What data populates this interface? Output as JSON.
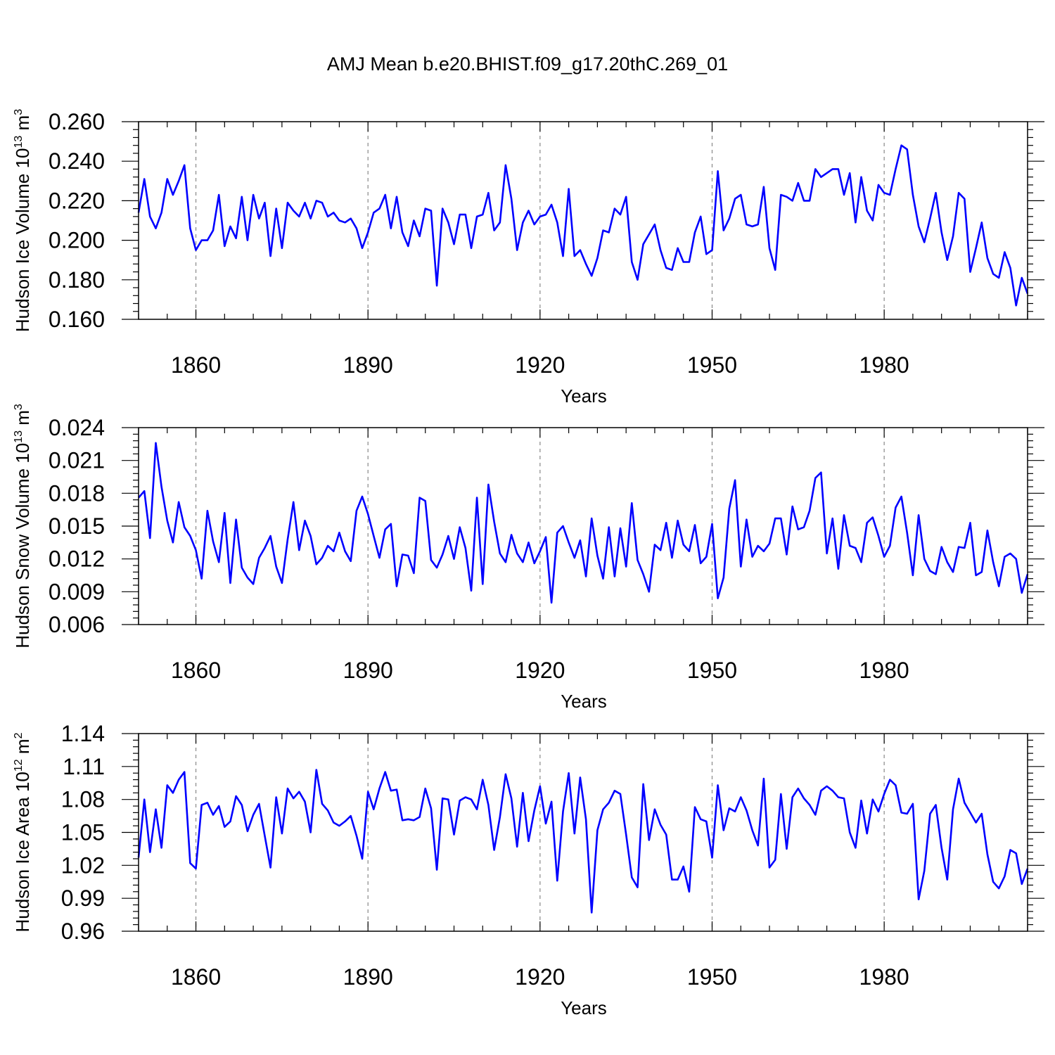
{
  "figure": {
    "title": "AMJ Mean b.e20.BHIST.f09_g17.20thC.269_01",
    "line_color": "#0000ff"
  },
  "chart_data": [
    {
      "type": "line",
      "name": "hudson-ice-volume",
      "ylabel": "Hudson Ice Volume 10",
      "ylabel_exp": "13",
      "ylabel_unit": "m",
      "ylabel_unit_exp": "3",
      "xlabel": "Years",
      "xlim": [
        1850,
        2005
      ],
      "ylim": [
        0.16,
        0.26
      ],
      "yticks": [
        0.16,
        0.18,
        0.2,
        0.22,
        0.24,
        0.26
      ],
      "ytick_labels": [
        "0.160",
        "0.180",
        "0.200",
        "0.220",
        "0.240",
        "0.260"
      ],
      "xticks": [
        1860,
        1890,
        1920,
        1950,
        1980
      ],
      "xtick_labels": [
        "1860",
        "1890",
        "1920",
        "1950",
        "1980"
      ],
      "x_start": 1850,
      "values": [
        0.214,
        0.231,
        0.212,
        0.206,
        0.214,
        0.231,
        0.223,
        0.23,
        0.238,
        0.206,
        0.195,
        0.2,
        0.2,
        0.205,
        0.223,
        0.197,
        0.207,
        0.201,
        0.222,
        0.2,
        0.223,
        0.211,
        0.219,
        0.192,
        0.216,
        0.196,
        0.219,
        0.215,
        0.212,
        0.219,
        0.211,
        0.22,
        0.219,
        0.212,
        0.214,
        0.21,
        0.209,
        0.211,
        0.206,
        0.196,
        0.204,
        0.214,
        0.216,
        0.223,
        0.206,
        0.222,
        0.204,
        0.197,
        0.21,
        0.202,
        0.216,
        0.215,
        0.177,
        0.216,
        0.209,
        0.198,
        0.213,
        0.213,
        0.196,
        0.212,
        0.213,
        0.224,
        0.205,
        0.209,
        0.238,
        0.221,
        0.195,
        0.209,
        0.215,
        0.208,
        0.212,
        0.213,
        0.218,
        0.209,
        0.192,
        0.226,
        0.192,
        0.195,
        0.188,
        0.182,
        0.191,
        0.205,
        0.204,
        0.216,
        0.213,
        0.222,
        0.189,
        0.18,
        0.198,
        0.203,
        0.208,
        0.195,
        0.186,
        0.185,
        0.196,
        0.189,
        0.189,
        0.204,
        0.212,
        0.193,
        0.195,
        0.235,
        0.205,
        0.211,
        0.221,
        0.223,
        0.208,
        0.207,
        0.208,
        0.227,
        0.196,
        0.185,
        0.223,
        0.222,
        0.22,
        0.229,
        0.22,
        0.22,
        0.236,
        0.232,
        0.234,
        0.236,
        0.236,
        0.223,
        0.234,
        0.209,
        0.232,
        0.215,
        0.21,
        0.228,
        0.224,
        0.223,
        0.236,
        0.248,
        0.246,
        0.223,
        0.207,
        0.199,
        0.211,
        0.224,
        0.204,
        0.19,
        0.202,
        0.224,
        0.221,
        0.184,
        0.196,
        0.209,
        0.191,
        0.183,
        0.181,
        0.194,
        0.186,
        0.167,
        0.181,
        0.173
      ]
    },
    {
      "type": "line",
      "name": "hudson-snow-volume",
      "ylabel": "Hudson Snow Volume 10",
      "ylabel_exp": "13",
      "ylabel_unit": "m",
      "ylabel_unit_exp": "3",
      "xlabel": "Years",
      "xlim": [
        1850,
        2005
      ],
      "ylim": [
        0.006,
        0.024
      ],
      "yticks": [
        0.006,
        0.009,
        0.012,
        0.015,
        0.018,
        0.021,
        0.024
      ],
      "ytick_labels": [
        "0.006",
        "0.009",
        "0.012",
        "0.015",
        "0.018",
        "0.021",
        "0.024"
      ],
      "xticks": [
        1860,
        1890,
        1920,
        1950,
        1980
      ],
      "xtick_labels": [
        "1860",
        "1890",
        "1920",
        "1950",
        "1980"
      ],
      "x_start": 1850,
      "values": [
        0.0176,
        0.0182,
        0.0139,
        0.0226,
        0.0186,
        0.0155,
        0.0135,
        0.0172,
        0.0149,
        0.0141,
        0.0128,
        0.0102,
        0.0164,
        0.0136,
        0.0117,
        0.0162,
        0.0098,
        0.0156,
        0.0112,
        0.0103,
        0.0097,
        0.0121,
        0.013,
        0.0141,
        0.0113,
        0.0098,
        0.0138,
        0.0172,
        0.0128,
        0.0155,
        0.0141,
        0.0115,
        0.0121,
        0.0132,
        0.0127,
        0.0144,
        0.0127,
        0.0118,
        0.0164,
        0.0177,
        0.0161,
        0.0141,
        0.0121,
        0.0147,
        0.0152,
        0.0095,
        0.0124,
        0.0123,
        0.0107,
        0.0176,
        0.0173,
        0.0119,
        0.0112,
        0.0124,
        0.0141,
        0.012,
        0.0149,
        0.013,
        0.0091,
        0.0176,
        0.0097,
        0.0188,
        0.0154,
        0.0125,
        0.0117,
        0.0142,
        0.0125,
        0.0117,
        0.0135,
        0.0116,
        0.0127,
        0.014,
        0.008,
        0.0144,
        0.015,
        0.0135,
        0.0121,
        0.0137,
        0.0104,
        0.0157,
        0.0123,
        0.0102,
        0.0149,
        0.0104,
        0.0148,
        0.0113,
        0.0171,
        0.0119,
        0.0106,
        0.009,
        0.0133,
        0.0128,
        0.0153,
        0.0121,
        0.0155,
        0.0133,
        0.0127,
        0.0151,
        0.0116,
        0.0122,
        0.0152,
        0.0084,
        0.0103,
        0.0166,
        0.0192,
        0.0113,
        0.0156,
        0.0122,
        0.0132,
        0.0127,
        0.0134,
        0.0157,
        0.0157,
        0.0124,
        0.0168,
        0.0147,
        0.0149,
        0.0164,
        0.0194,
        0.0199,
        0.0125,
        0.0157,
        0.0111,
        0.016,
        0.0132,
        0.013,
        0.0117,
        0.0153,
        0.0158,
        0.0141,
        0.0122,
        0.0132,
        0.0167,
        0.0177,
        0.0144,
        0.0105,
        0.016,
        0.012,
        0.0109,
        0.0106,
        0.0131,
        0.0117,
        0.0108,
        0.0131,
        0.013,
        0.0153,
        0.0105,
        0.0108,
        0.0146,
        0.0117,
        0.0095,
        0.0122,
        0.0125,
        0.012,
        0.0089,
        0.0106
      ]
    },
    {
      "type": "line",
      "name": "hudson-ice-area",
      "ylabel": "Hudson Ice Area 10",
      "ylabel_exp": "12",
      "ylabel_unit": "m",
      "ylabel_unit_exp": "2",
      "xlabel": "Years",
      "xlim": [
        1850,
        2005
      ],
      "ylim": [
        0.96,
        1.14
      ],
      "yticks": [
        0.96,
        0.99,
        1.02,
        1.05,
        1.08,
        1.11,
        1.14
      ],
      "ytick_labels": [
        "0.96",
        "0.99",
        "1.02",
        "1.05",
        "1.08",
        "1.11",
        "1.14"
      ],
      "xticks": [
        1860,
        1890,
        1920,
        1950,
        1980
      ],
      "xtick_labels": [
        "1860",
        "1890",
        "1920",
        "1950",
        "1980"
      ],
      "x_start": 1850,
      "values": [
        1.027,
        1.08,
        1.032,
        1.071,
        1.036,
        1.093,
        1.086,
        1.098,
        1.105,
        1.022,
        1.017,
        1.075,
        1.077,
        1.066,
        1.074,
        1.055,
        1.06,
        1.083,
        1.075,
        1.051,
        1.066,
        1.076,
        1.047,
        1.018,
        1.082,
        1.049,
        1.09,
        1.081,
        1.087,
        1.078,
        1.05,
        1.107,
        1.076,
        1.07,
        1.059,
        1.056,
        1.06,
        1.065,
        1.047,
        1.026,
        1.087,
        1.071,
        1.09,
        1.105,
        1.088,
        1.089,
        1.061,
        1.062,
        1.061,
        1.064,
        1.09,
        1.072,
        1.016,
        1.081,
        1.08,
        1.048,
        1.079,
        1.082,
        1.08,
        1.071,
        1.098,
        1.075,
        1.034,
        1.064,
        1.103,
        1.081,
        1.037,
        1.086,
        1.042,
        1.07,
        1.092,
        1.058,
        1.078,
        1.006,
        1.069,
        1.104,
        1.049,
        1.1,
        1.062,
        0.977,
        1.052,
        1.071,
        1.077,
        1.088,
        1.085,
        1.048,
        1.009,
        1.0,
        1.094,
        1.043,
        1.071,
        1.057,
        1.048,
        1.007,
        1.007,
        1.019,
        0.996,
        1.073,
        1.062,
        1.06,
        1.027,
        1.093,
        1.052,
        1.072,
        1.069,
        1.082,
        1.07,
        1.052,
        1.038,
        1.099,
        1.018,
        1.025,
        1.085,
        1.035,
        1.082,
        1.09,
        1.081,
        1.075,
        1.066,
        1.088,
        1.092,
        1.088,
        1.082,
        1.081,
        1.05,
        1.036,
        1.079,
        1.049,
        1.08,
        1.069,
        1.085,
        1.098,
        1.093,
        1.068,
        1.067,
        1.076,
        0.989,
        1.015,
        1.067,
        1.075,
        1.036,
        1.007,
        1.071,
        1.099,
        1.077,
        1.068,
        1.059,
        1.067,
        1.03,
        1.005,
        0.999,
        1.01,
        1.034,
        1.031,
        1.003,
        1.017
      ]
    }
  ]
}
